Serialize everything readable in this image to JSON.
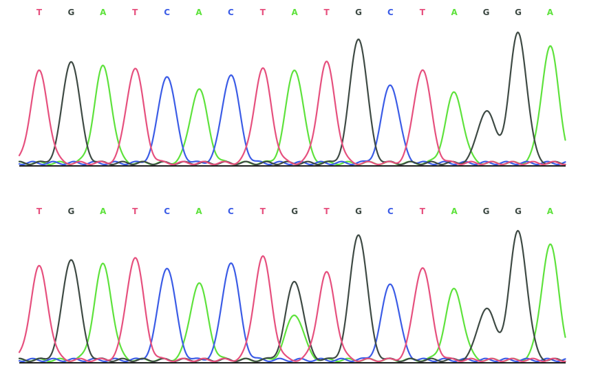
{
  "chart_data": {
    "type": "line",
    "colors": {
      "A": "#5ee23c",
      "C": "#3b5ce6",
      "G": "#3e4a44",
      "T": "#e6507e"
    },
    "panels": [
      {
        "sequence": [
          "T",
          "G",
          "A",
          "T",
          "C",
          "A",
          "C",
          "T",
          "A",
          "T",
          "G",
          "C",
          "T",
          "A",
          "G",
          "G",
          "A"
        ],
        "peak_heights": [
          0.73,
          0.82,
          0.77,
          0.76,
          0.7,
          0.59,
          0.71,
          0.75,
          0.75,
          0.8,
          1.0,
          0.63,
          0.75,
          0.56,
          0.42,
          1.04,
          0.93
        ],
        "minor_peaks": []
      },
      {
        "sequence": [
          "T",
          "G",
          "A",
          "T",
          "C",
          "A",
          "C",
          "T",
          "G",
          "T",
          "G",
          "C",
          "T",
          "A",
          "G",
          "G",
          "A"
        ],
        "peak_heights": [
          0.75,
          0.82,
          0.77,
          0.83,
          0.75,
          0.62,
          0.79,
          0.83,
          0.64,
          0.7,
          1.02,
          0.62,
          0.75,
          0.57,
          0.42,
          1.04,
          0.93
        ],
        "minor_peaks": [
          {
            "position": 8,
            "base": "A",
            "height": 0.37
          }
        ]
      }
    ]
  }
}
